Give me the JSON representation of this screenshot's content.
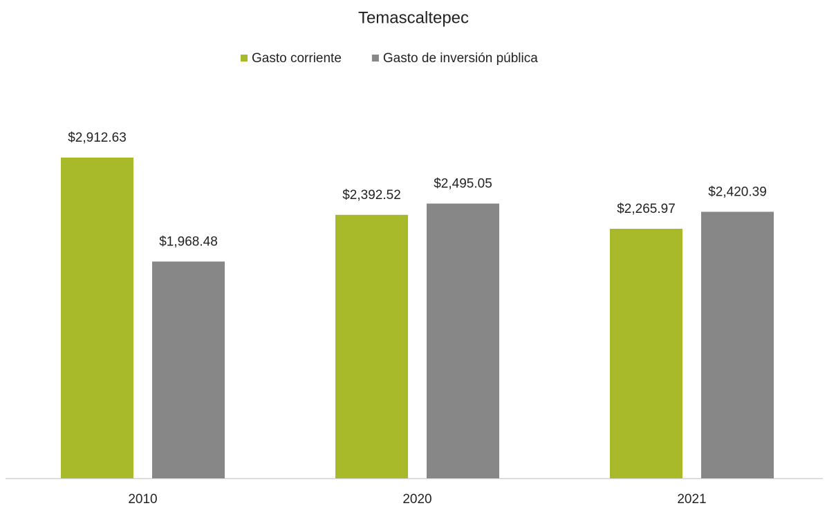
{
  "chart_data": {
    "type": "bar",
    "title": "Temascaltepec",
    "categories": [
      "2010",
      "2020",
      "2021"
    ],
    "series": [
      {
        "name": "Gasto corriente",
        "color": "#a8b92a",
        "values": [
          2912.63,
          2392.52,
          2265.97
        ],
        "value_labels": [
          "$2,912.63",
          "$2,392.52",
          "$2,265.97"
        ]
      },
      {
        "name": "Gasto de inversión pública",
        "color": "#878787",
        "values": [
          1968.48,
          2495.05,
          2420.39
        ],
        "value_labels": [
          "$1,968.48",
          "$2,495.05",
          "$2,420.39"
        ]
      }
    ],
    "legend": "top"
  }
}
